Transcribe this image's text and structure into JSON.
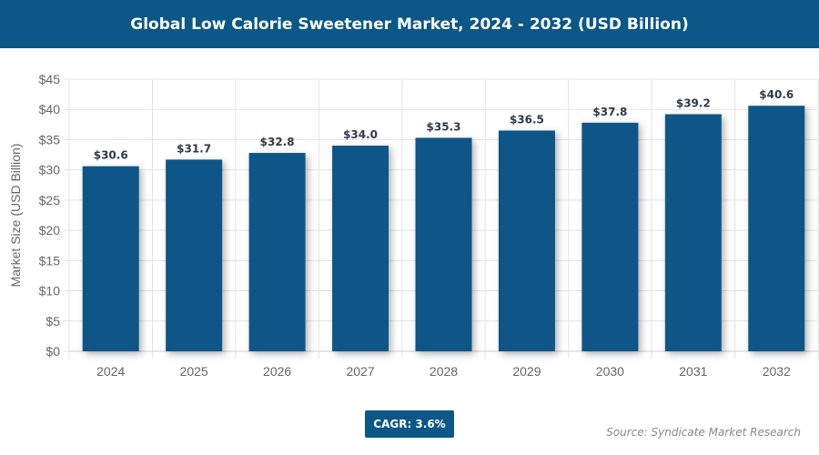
{
  "chart_data": {
    "type": "bar",
    "title": "Global Low Calorie Sweetener Market, 2024 - 2032 (USD Billion)",
    "xlabel": "",
    "ylabel": "Market Size (USD Billion)",
    "categories": [
      "2024",
      "2025",
      "2026",
      "2027",
      "2028",
      "2029",
      "2030",
      "2031",
      "2032"
    ],
    "values": [
      30.6,
      31.7,
      32.8,
      34.0,
      35.3,
      36.5,
      37.8,
      39.2,
      40.6
    ],
    "data_labels": [
      "$30.6",
      "$31.7",
      "$32.8",
      "$34.0",
      "$35.3",
      "$36.5",
      "$37.8",
      "$39.2",
      "$40.6"
    ],
    "ylim": [
      0,
      45
    ],
    "yticks": [
      0,
      5,
      10,
      15,
      20,
      25,
      30,
      35,
      40,
      45
    ],
    "ytick_labels": [
      "$0",
      "$5",
      "$10",
      "$15",
      "$20",
      "$25",
      "$30",
      "$35",
      "$40",
      "$45"
    ],
    "grid": true,
    "bar_color": "#0b5787"
  },
  "badge": {
    "cagr": "CAGR: 3.6%"
  },
  "source": "Source: Syndicate Market Research"
}
